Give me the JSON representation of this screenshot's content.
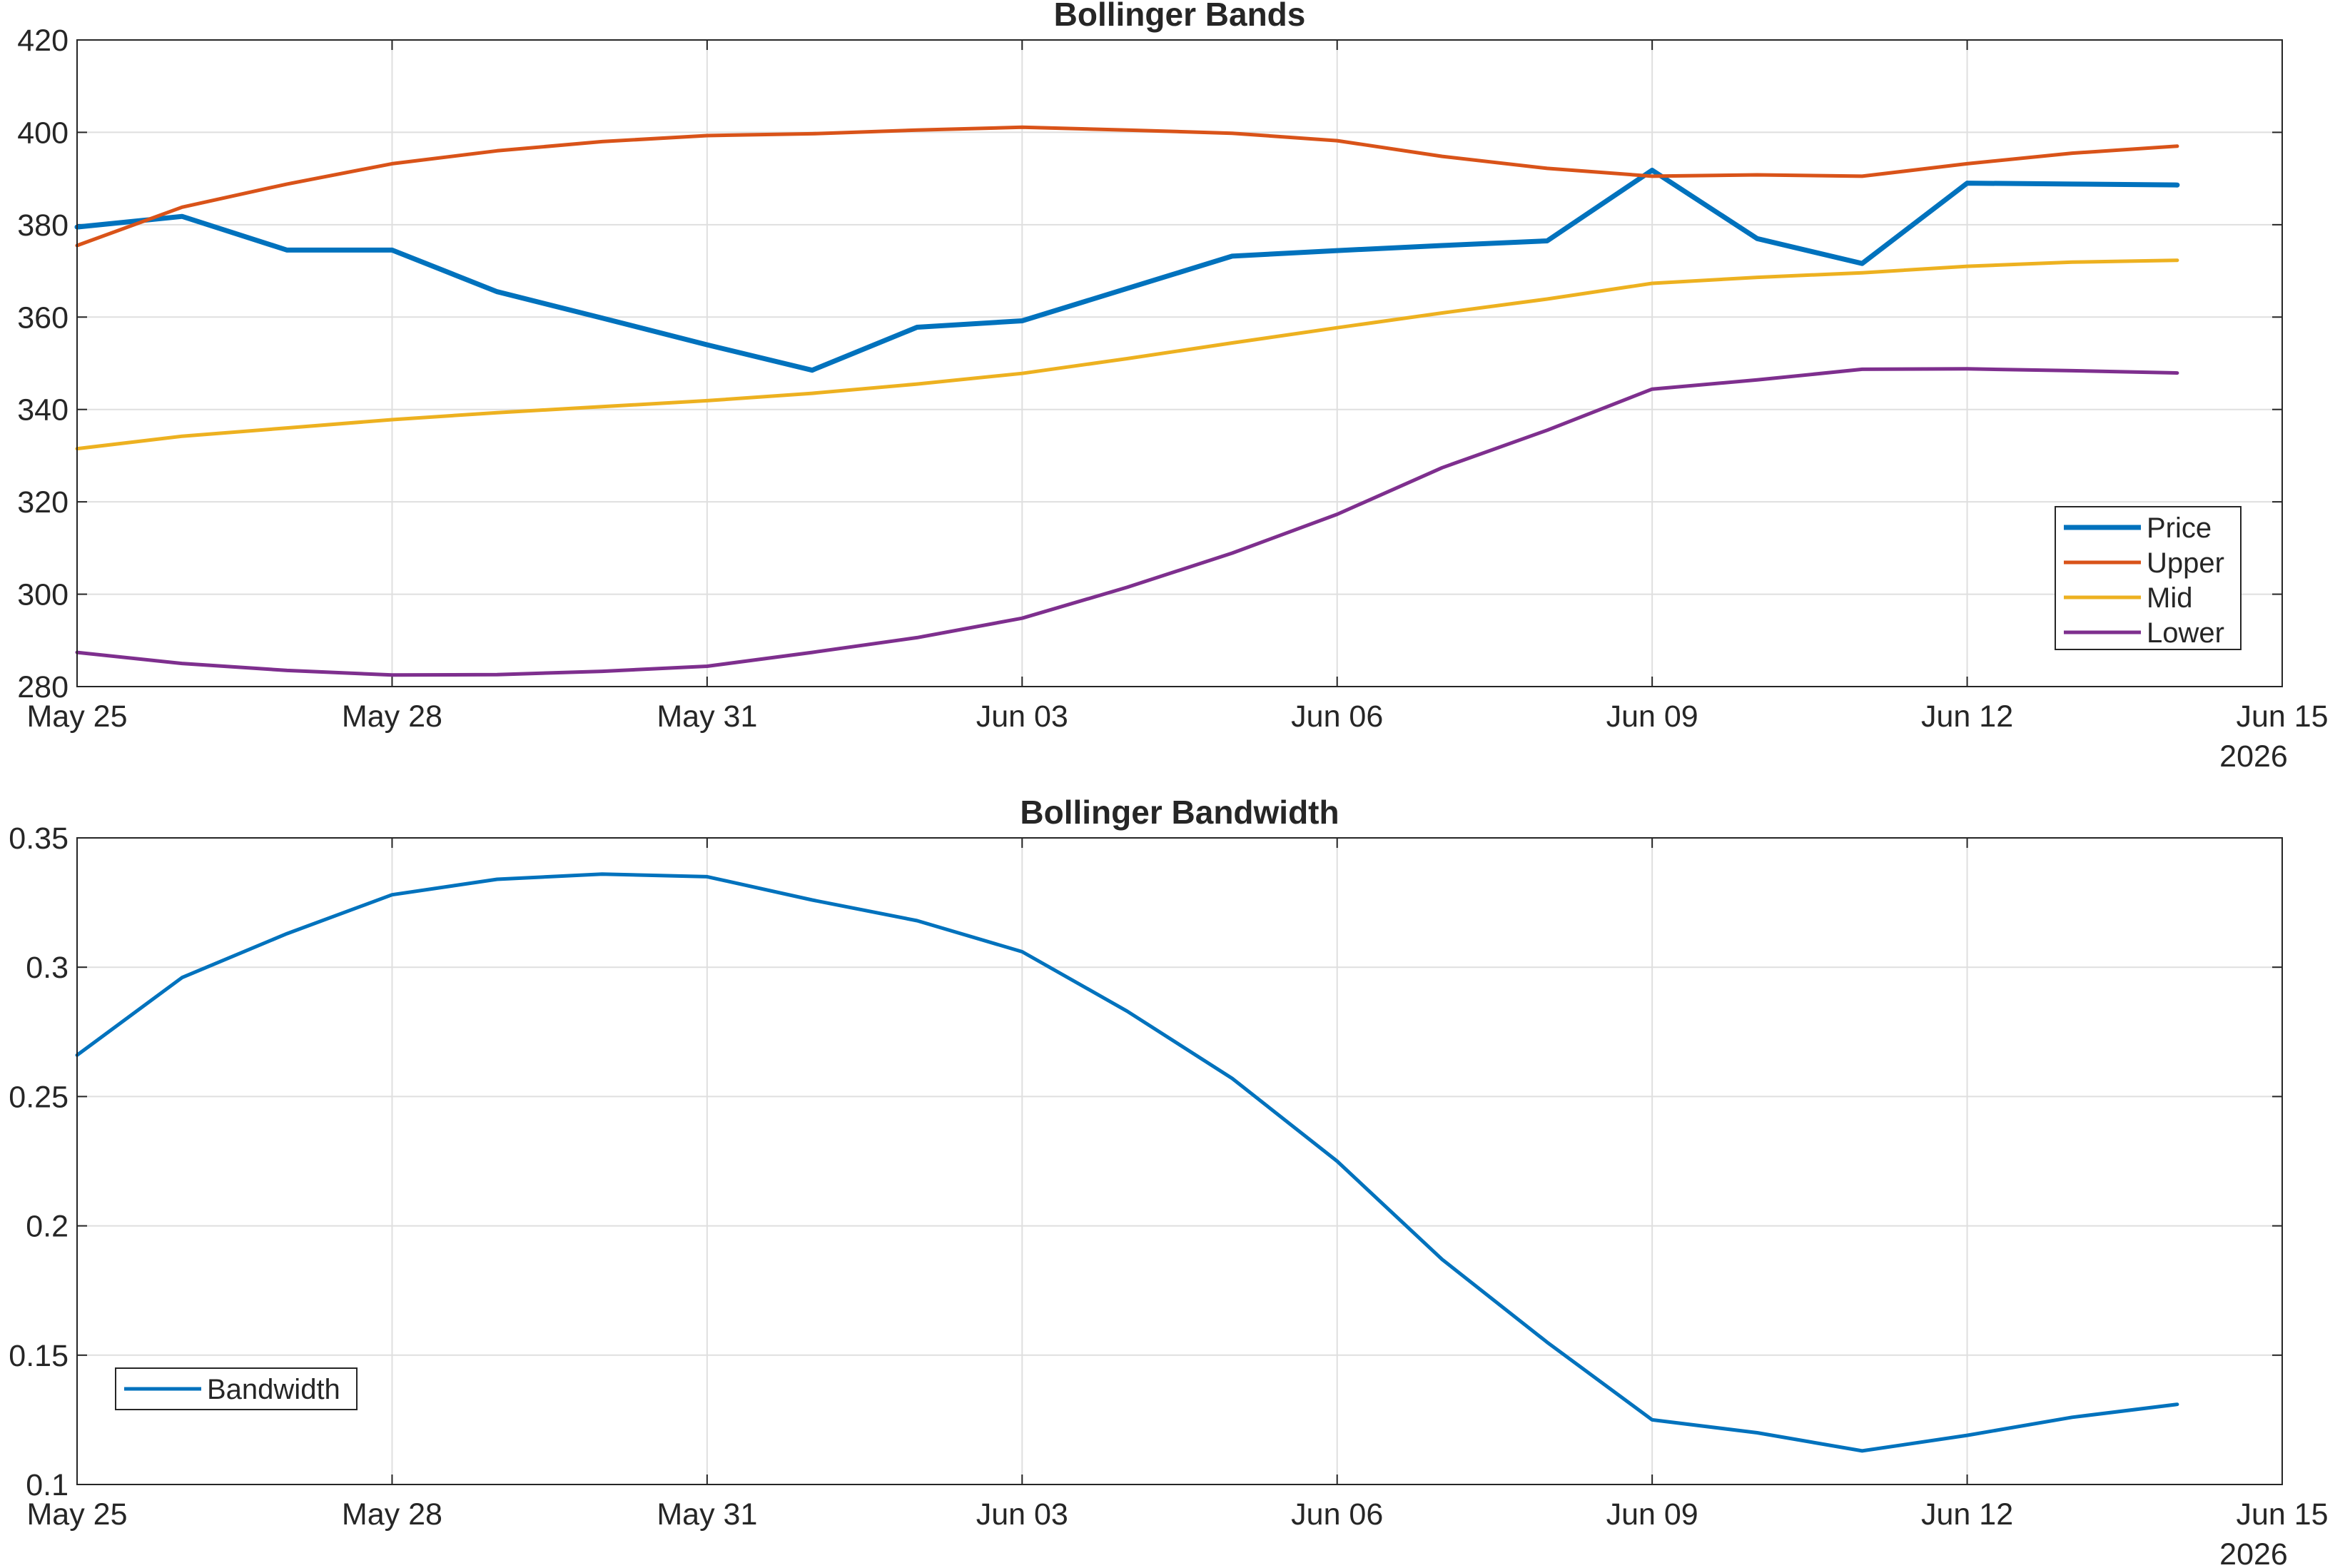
{
  "chart_data": [
    {
      "type": "line",
      "title": "Bollinger Bands",
      "xlabel": "",
      "ylabel": "",
      "x": [
        "May 25",
        "May 26",
        "May 27",
        "May 28",
        "May 29",
        "May 30",
        "May 31",
        "Jun 01",
        "Jun 02",
        "Jun 03",
        "Jun 04",
        "Jun 05",
        "Jun 06",
        "Jun 07",
        "Jun 08",
        "Jun 09",
        "Jun 10",
        "Jun 11",
        "Jun 12",
        "Jun 13",
        "Jun 14"
      ],
      "x_ticks": [
        "May 25",
        "May 28",
        "May 31",
        "Jun 03",
        "Jun 06",
        "Jun 09",
        "Jun 12",
        "Jun 15"
      ],
      "x_year": "2026",
      "xlim": [
        "May 25",
        "Jun 15"
      ],
      "ylim": [
        280,
        420
      ],
      "y_ticks": [
        "280",
        "300",
        "320",
        "340",
        "360",
        "380",
        "400",
        "420"
      ],
      "grid": true,
      "legend_position": "bottom-right",
      "series": [
        {
          "name": "Price",
          "color": "#0072BD",
          "values": [
            379.5,
            381.8,
            374.5,
            374.5,
            365.5,
            359.8,
            354.0,
            348.5,
            357.8,
            359.2,
            366.2,
            373.2,
            374.4,
            375.5,
            376.5,
            391.8,
            377.0,
            371.6,
            389.0,
            388.8,
            388.6
          ]
        },
        {
          "name": "Upper",
          "color": "#D95319",
          "values": [
            375.5,
            383.8,
            388.8,
            393.2,
            396.0,
            398.0,
            399.3,
            399.7,
            400.5,
            401.1,
            400.5,
            399.8,
            398.2,
            394.8,
            392.2,
            390.5,
            390.8,
            390.5,
            393.2,
            395.5,
            397.0
          ]
        },
        {
          "name": "Mid",
          "color": "#EDB120",
          "values": [
            331.5,
            334.2,
            336.0,
            337.8,
            339.3,
            340.6,
            341.9,
            343.5,
            345.5,
            347.8,
            351.0,
            354.4,
            357.7,
            360.9,
            363.9,
            367.3,
            368.6,
            369.6,
            371.0,
            371.9,
            372.3
          ]
        },
        {
          "name": "Lower",
          "color": "#7E2F8E",
          "values": [
            287.4,
            285.0,
            283.5,
            282.5,
            282.6,
            283.3,
            284.4,
            287.4,
            290.6,
            294.8,
            301.5,
            308.9,
            317.3,
            327.4,
            335.5,
            344.4,
            346.4,
            348.7,
            348.8,
            348.4,
            347.9
          ]
        }
      ]
    },
    {
      "type": "line",
      "title": "Bollinger Bandwidth",
      "xlabel": "",
      "ylabel": "",
      "x": [
        "May 25",
        "May 26",
        "May 27",
        "May 28",
        "May 29",
        "May 30",
        "May 31",
        "Jun 01",
        "Jun 02",
        "Jun 03",
        "Jun 04",
        "Jun 05",
        "Jun 06",
        "Jun 07",
        "Jun 08",
        "Jun 09",
        "Jun 10",
        "Jun 11",
        "Jun 12",
        "Jun 13",
        "Jun 14"
      ],
      "x_ticks": [
        "May 25",
        "May 28",
        "May 31",
        "Jun 03",
        "Jun 06",
        "Jun 09",
        "Jun 12",
        "Jun 15"
      ],
      "x_year": "2026",
      "xlim": [
        "May 25",
        "Jun 15"
      ],
      "ylim": [
        0.1,
        0.35
      ],
      "y_ticks": [
        "0.1",
        "0.15",
        "0.2",
        "0.25",
        "0.3",
        "0.35"
      ],
      "grid": true,
      "legend_position": "bottom-left",
      "series": [
        {
          "name": "Bandwidth",
          "color": "#0072BD",
          "values": [
            0.266,
            0.296,
            0.313,
            0.328,
            0.334,
            0.336,
            0.335,
            0.326,
            0.318,
            0.306,
            0.283,
            0.257,
            0.225,
            0.187,
            0.155,
            0.125,
            0.12,
            0.113,
            0.119,
            0.126,
            0.131
          ]
        }
      ]
    }
  ]
}
